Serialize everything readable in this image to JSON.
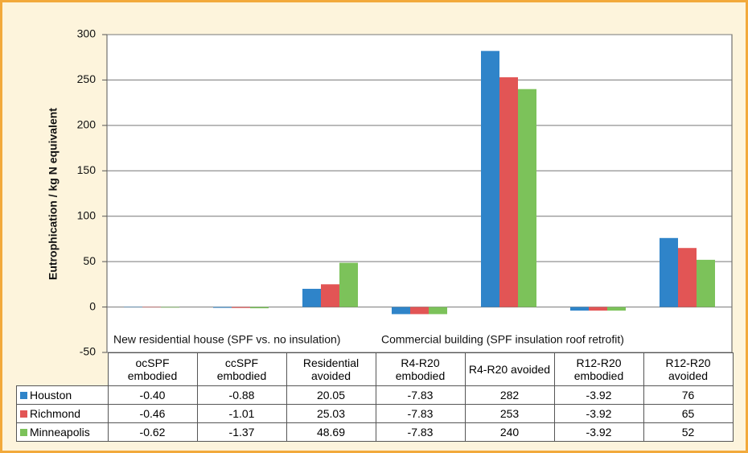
{
  "chart_data": {
    "type": "bar",
    "y_label": "Eutrophication / kg N equivalent",
    "categories": [
      "ocSPF embodied",
      "ccSPF embodied",
      "Residential avoided",
      "R4-R20 embodied",
      "R4-R20 avoided",
      "R12-R20 embodied",
      "R12-R20 avoided"
    ],
    "series": [
      {
        "name": "Houston",
        "color": "#2f84c9",
        "values": [
          -0.4,
          -0.88,
          20.05,
          -7.83,
          282,
          -3.92,
          76
        ],
        "value_labels": [
          "-0.40",
          "-0.88",
          "20.05",
          "-7.83",
          "282",
          "-3.92",
          "76"
        ]
      },
      {
        "name": "Richmond",
        "color": "#e25555",
        "values": [
          -0.46,
          -1.01,
          25.03,
          -7.83,
          253,
          -3.92,
          65
        ],
        "value_labels": [
          "-0.46",
          "-1.01",
          "25.03",
          "-7.83",
          "253",
          "-3.92",
          "65"
        ]
      },
      {
        "name": "Minneapolis",
        "color": "#7cc25a",
        "values": [
          -0.62,
          -1.37,
          48.69,
          -7.83,
          240,
          -3.92,
          52
        ],
        "value_labels": [
          "-0.62",
          "-1.37",
          "48.69",
          "-7.83",
          "240",
          "-3.92",
          "52"
        ]
      }
    ],
    "annotations": [
      "New residential house (SPF vs. no insulation)",
      "Commercial building (SPF insulation roof retrofit)"
    ],
    "ylim": [
      -50,
      300
    ],
    "yticks": [
      -50,
      0,
      50,
      100,
      150,
      200,
      250,
      300
    ],
    "grid": true
  }
}
